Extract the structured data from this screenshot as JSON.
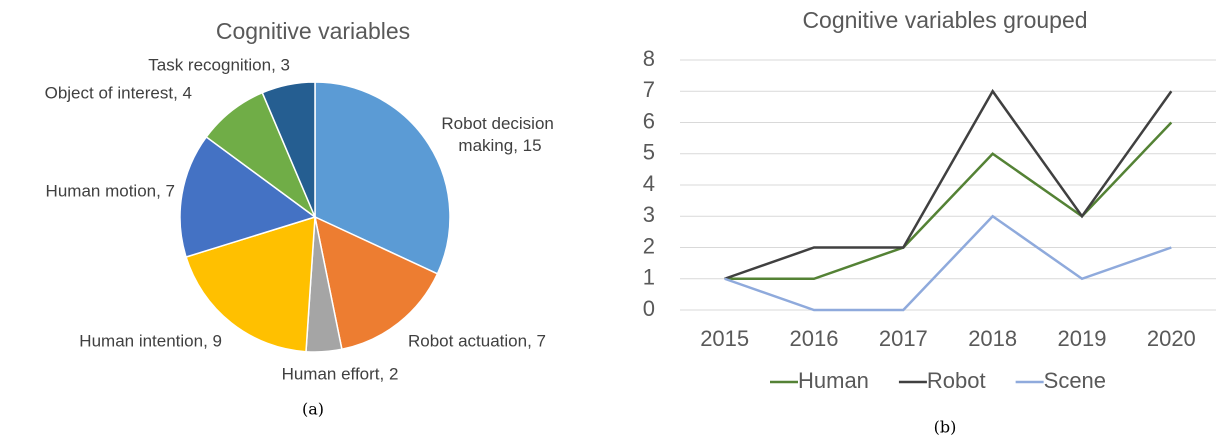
{
  "chart_data": [
    {
      "type": "pie",
      "title": "Cognitive variables",
      "caption": "(a)",
      "values": [
        15,
        7,
        2,
        9,
        7,
        4,
        3
      ],
      "value_labels": [
        "Robot decision making, 15",
        "Robot actuation, 7",
        "Human effort, 2",
        "Human intention, 9",
        "Human motion, 7",
        "Object of interest, 4",
        "Task recognition, 3"
      ],
      "colors": [
        "#5b9bd5",
        "#ed7d31",
        "#a5a5a5",
        "#ffc000",
        "#4472c4",
        "#70ad47",
        "#255e91"
      ]
    },
    {
      "type": "line",
      "title": "Cognitive variables grouped",
      "caption": "(b)",
      "categories": [
        "2015",
        "2016",
        "2017",
        "2018",
        "2019",
        "2020"
      ],
      "series": [
        {
          "name": "Human",
          "color": "#548235",
          "values": [
            1,
            1,
            2,
            5,
            3,
            6
          ]
        },
        {
          "name": "Robot",
          "color": "#404040",
          "values": [
            1,
            2,
            2,
            7,
            3,
            7
          ]
        },
        {
          "name": "Scene",
          "color": "#8faadc",
          "values": [
            1,
            0,
            0,
            3,
            1,
            2
          ]
        }
      ],
      "ylim": [
        0,
        8
      ],
      "yticks": [
        0,
        1,
        2,
        3,
        4,
        5,
        6,
        7,
        8
      ],
      "grid": true,
      "legend": "bottom"
    }
  ]
}
